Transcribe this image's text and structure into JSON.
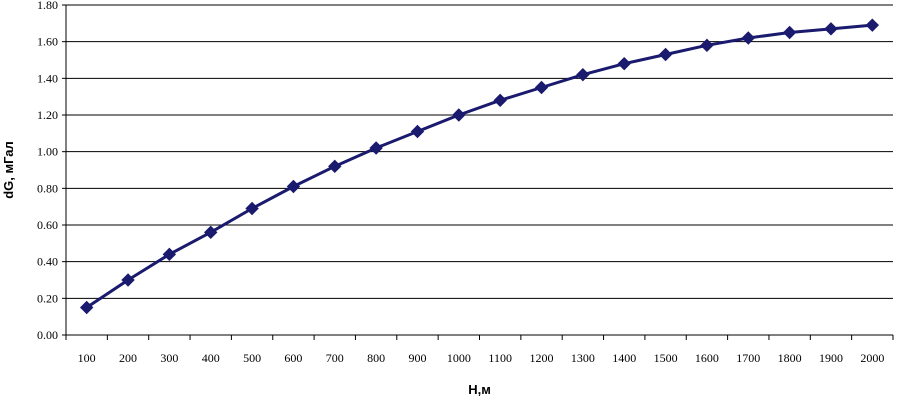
{
  "chart_data": {
    "type": "line",
    "title": "",
    "xlabel": "H,м",
    "ylabel": "dG, мГал",
    "categories": [
      "100",
      "200",
      "300",
      "400",
      "500",
      "600",
      "700",
      "800",
      "900",
      "1000",
      "1100",
      "1200",
      "1300",
      "1400",
      "1500",
      "1600",
      "1700",
      "1800",
      "1900",
      "2000"
    ],
    "series": [
      {
        "values": [
          0.15,
          0.3,
          0.44,
          0.56,
          0.69,
          0.81,
          0.92,
          1.02,
          1.11,
          1.2,
          1.28,
          1.35,
          1.42,
          1.48,
          1.53,
          1.58,
          1.62,
          1.65,
          1.67,
          1.69
        ]
      }
    ],
    "ylim": [
      0,
      1.8
    ],
    "yticks": [
      "0.00",
      "0.20",
      "0.40",
      "0.60",
      "0.80",
      "1.00",
      "1.20",
      "1.40",
      "1.60",
      "1.80"
    ],
    "grid": "horizontal",
    "legend": "none",
    "colors": {
      "series": "#1a1a6e",
      "grid": "#000000"
    }
  }
}
